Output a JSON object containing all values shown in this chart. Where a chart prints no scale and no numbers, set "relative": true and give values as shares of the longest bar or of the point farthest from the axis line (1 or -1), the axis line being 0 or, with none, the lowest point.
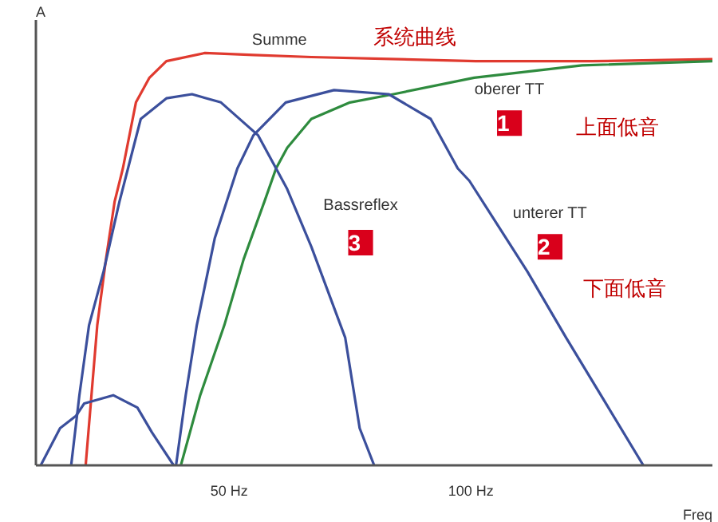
{
  "chart_data": {
    "type": "line",
    "relative": true,
    "xlabel": "Freq",
    "ylabel": "A",
    "xlim": [
      10,
      150
    ],
    "xticks": [
      {
        "value": 50,
        "label": "50 Hz"
      },
      {
        "value": 100,
        "label": "100 Hz"
      }
    ],
    "grid": false,
    "line_style": "solid",
    "marker": "none",
    "series": [
      {
        "color": "#e03a2f",
        "x": [
          20.3,
          21.5,
          22.7,
          24.5,
          26.3,
          28,
          30.7,
          33.5,
          37,
          45,
          55,
          67,
          85,
          101,
          125,
          150
        ],
        "values": [
          0,
          0.17,
          0.34,
          0.5,
          0.64,
          0.72,
          0.88,
          0.94,
          0.98,
          1.0,
          0.995,
          0.99,
          0.985,
          0.98,
          0.98,
          0.985
        ]
      },
      {
        "color": "#2e8b3e",
        "x": [
          40,
          44,
          49,
          53,
          57.3,
          59.7,
          62,
          67,
          75,
          84,
          100.7,
          123,
          150
        ],
        "values": [
          0,
          0.17,
          0.34,
          0.5,
          0.64,
          0.72,
          0.77,
          0.84,
          0.88,
          0.9,
          0.94,
          0.97,
          0.98
        ]
      },
      {
        "color": "#3b4f9c",
        "x": [
          39,
          41,
          43.3,
          47,
          51.7,
          55,
          61.7,
          71.7,
          83,
          91.7,
          97.3,
          99.7,
          111.7,
          119.7,
          135.7
        ],
        "values": [
          0,
          0.17,
          0.34,
          0.55,
          0.72,
          0.8,
          0.88,
          0.91,
          0.9,
          0.84,
          0.72,
          0.69,
          0.47,
          0.31,
          0
        ]
      },
      {
        "color": "#3b4f9c",
        "x": [
          17.3,
          19,
          21,
          24,
          27.3,
          31.7,
          37,
          42.3,
          48.3,
          56,
          59.7,
          62,
          67,
          74,
          77,
          80
        ],
        "values": [
          0,
          0.17,
          0.34,
          0.47,
          0.64,
          0.84,
          0.89,
          0.9,
          0.88,
          0.8,
          0.72,
          0.67,
          0.53,
          0.31,
          0.09,
          0
        ]
      },
      {
        "color": "#3b4f9c",
        "x": [
          11,
          15,
          18.3,
          20,
          26,
          31,
          34,
          38.5
        ],
        "values": [
          0,
          0.09,
          0.12,
          0.15,
          0.17,
          0.14,
          0.08,
          0
        ]
      }
    ],
    "annotations": [
      "Summe",
      "系统曲线",
      "oberer TT",
      "1",
      "上面低音",
      "Bassreflex",
      "3",
      "unterer TT",
      "2",
      "下面低音"
    ]
  }
}
